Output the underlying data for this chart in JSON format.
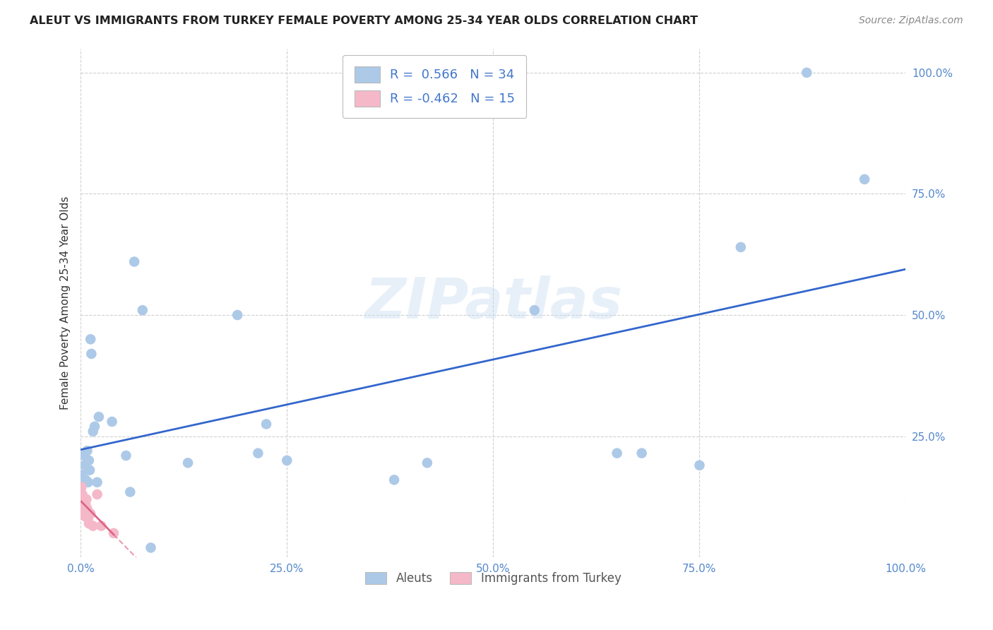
{
  "title": "ALEUT VS IMMIGRANTS FROM TURKEY FEMALE POVERTY AMONG 25-34 YEAR OLDS CORRELATION CHART",
  "source": "Source: ZipAtlas.com",
  "ylabel": "Female Poverty Among 25-34 Year Olds",
  "xlim": [
    0.0,
    1.0
  ],
  "ylim": [
    0.0,
    1.05
  ],
  "xticks": [
    0.0,
    0.25,
    0.5,
    0.75,
    1.0
  ],
  "xtick_labels": [
    "0.0%",
    "25.0%",
    "50.0%",
    "75.0%",
    "100.0%"
  ],
  "yticks": [
    0.25,
    0.5,
    0.75,
    1.0
  ],
  "ytick_labels": [
    "25.0%",
    "50.0%",
    "75.0%",
    "100.0%"
  ],
  "aleuts_color": "#adc9e8",
  "turkey_color": "#f5b8c8",
  "aleuts_line_color": "#3366cc",
  "turkey_line_color": "#dd6688",
  "R_aleuts": 0.566,
  "N_aleuts": 34,
  "R_turkey": -0.462,
  "N_turkey": 15,
  "aleuts_x": [
    0.002,
    0.004,
    0.005,
    0.006,
    0.008,
    0.009,
    0.01,
    0.011,
    0.012,
    0.013,
    0.015,
    0.017,
    0.02,
    0.022,
    0.038,
    0.055,
    0.06,
    0.065,
    0.075,
    0.085,
    0.13,
    0.19,
    0.215,
    0.225,
    0.25,
    0.38,
    0.42,
    0.55,
    0.65,
    0.68,
    0.75,
    0.8,
    0.88,
    0.95
  ],
  "aleuts_y": [
    0.17,
    0.21,
    0.19,
    0.16,
    0.22,
    0.155,
    0.2,
    0.18,
    0.45,
    0.42,
    0.26,
    0.27,
    0.155,
    0.29,
    0.28,
    0.21,
    0.135,
    0.61,
    0.51,
    0.02,
    0.195,
    0.5,
    0.215,
    0.275,
    0.2,
    0.16,
    0.195,
    0.51,
    0.215,
    0.215,
    0.19,
    0.64,
    1.0,
    0.78
  ],
  "turkey_x": [
    0.001,
    0.002,
    0.003,
    0.004,
    0.005,
    0.006,
    0.007,
    0.008,
    0.009,
    0.01,
    0.012,
    0.015,
    0.02,
    0.025,
    0.04
  ],
  "turkey_y": [
    0.145,
    0.13,
    0.1,
    0.12,
    0.085,
    0.11,
    0.12,
    0.1,
    0.08,
    0.07,
    0.09,
    0.065,
    0.13,
    0.065,
    0.05
  ],
  "watermark": "ZIPatlas",
  "background_color": "#ffffff",
  "grid_color": "#d0d0d0"
}
